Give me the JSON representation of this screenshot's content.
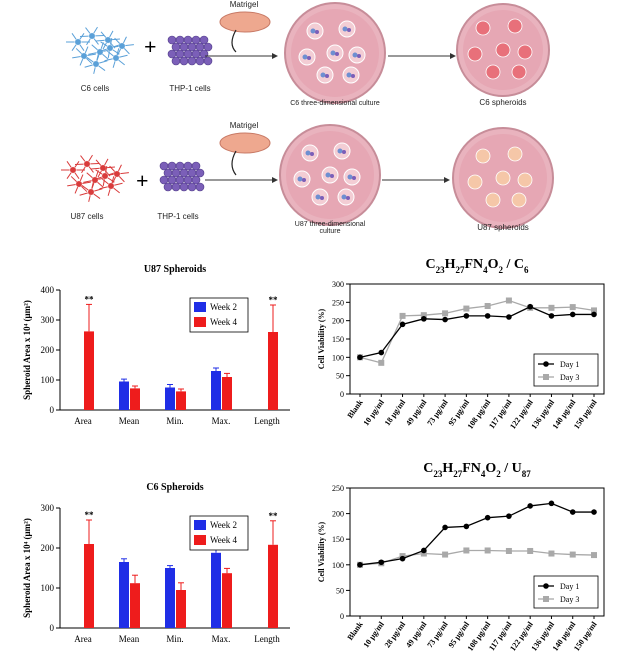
{
  "schematic": {
    "row1": {
      "cell_label": "C6 cells",
      "thp_label": "THP-1 cells",
      "matrigel_label": "Matrigel",
      "culture_label": "C6 three-dimensional culture",
      "spheroid_label": "C6 spheroids"
    },
    "row2": {
      "cell_label": "U87 cells",
      "thp_label": "THP-1 cells",
      "matrigel_label": "Matrigel",
      "culture_label": "U87 three-dimensional culture",
      "spheroid_label": "U87 spheroids"
    },
    "colors": {
      "c6_cell": "#5aa0d8",
      "u87_cell": "#d93b3b",
      "thp": "#7b5fb8",
      "dish": "#e6a7b4",
      "spheroid_c6": "#e8707a",
      "spheroid_u87": "#f5c7a8"
    }
  },
  "chart_data": [
    {
      "type": "bar",
      "title": "U87 Spheroids",
      "ylabel": "Spheroid Area x 10⁴ (μm²)",
      "categories": [
        "Area",
        "Mean",
        "Min.",
        "Max.",
        "Length"
      ],
      "ylim": [
        0,
        400
      ],
      "yticks": [
        "0",
        "100",
        "200",
        "300",
        "400"
      ],
      "series": [
        {
          "name": "Week 2",
          "color": "#1f2ee6",
          "values": [
            0,
            95,
            75,
            130,
            0
          ],
          "errors": [
            0,
            8,
            10,
            10,
            0
          ]
        },
        {
          "name": "Week 4",
          "color": "#ee1c1c",
          "values": [
            262,
            72,
            62,
            110,
            260
          ],
          "errors": [
            90,
            8,
            8,
            12,
            90
          ]
        }
      ],
      "annotations": [
        "**",
        "**"
      ],
      "legend": "top-right"
    },
    {
      "type": "line",
      "title": "C23H27FN4O2 / C6",
      "ylabel": "Cell Viability (%)",
      "categories": [
        "Blank",
        "10 μg/ml",
        "18 μg/ml",
        "49 μg/ml",
        "73 μg/ml",
        "95 μg/ml",
        "108 μg/ml",
        "117 μg/ml",
        "122 μg/ml",
        "136 μg/ml",
        "140 μg/ml",
        "150 μg/ml"
      ],
      "ylim": [
        0,
        300
      ],
      "yticks": [
        "0",
        "50",
        "100",
        "150",
        "200",
        "250",
        "300"
      ],
      "series": [
        {
          "name": "Day 1",
          "color": "#000000",
          "marker": "circle",
          "values": [
            100,
            113,
            190,
            205,
            203,
            213,
            213,
            210,
            238,
            213,
            217,
            217
          ]
        },
        {
          "name": "Day 3",
          "color": "#a9a9a9",
          "marker": "square",
          "values": [
            100,
            85,
            213,
            215,
            220,
            233,
            240,
            255,
            235,
            235,
            237,
            228
          ]
        }
      ],
      "legend": "bottom-right"
    },
    {
      "type": "bar",
      "title": "C6 Spheroids",
      "ylabel": "Spheroid Area x 10⁴ (μm²)",
      "categories": [
        "Area",
        "Mean",
        "Min.",
        "Max.",
        "Length"
      ],
      "ylim": [
        0,
        300
      ],
      "yticks": [
        "0",
        "100",
        "200",
        "300"
      ],
      "series": [
        {
          "name": "Week 2",
          "color": "#1f2ee6",
          "values": [
            0,
            165,
            150,
            188,
            0
          ],
          "errors": [
            0,
            8,
            6,
            15,
            0
          ]
        },
        {
          "name": "Week 4",
          "color": "#ee1c1c",
          "values": [
            210,
            112,
            95,
            137,
            208
          ],
          "errors": [
            60,
            20,
            18,
            12,
            60
          ]
        }
      ],
      "annotations": [
        "**",
        "**"
      ],
      "legend": "top-right"
    },
    {
      "type": "line",
      "title": "C23H27FN4O2 / U87",
      "ylabel": "Cell Viability (%)",
      "categories": [
        "Blank",
        "10 μg/ml",
        "28 μg/ml",
        "49 μg/ml",
        "73 μg/ml",
        "95 μg/ml",
        "108 μg/ml",
        "117 μg/ml",
        "122 μg/ml",
        "136 μg/ml",
        "140 μg/ml",
        "150 μg/ml"
      ],
      "ylim": [
        0,
        250
      ],
      "yticks": [
        "0",
        "50",
        "100",
        "150",
        "200",
        "250"
      ],
      "series": [
        {
          "name": "Day 1",
          "color": "#000000",
          "marker": "circle",
          "values": [
            100,
            105,
            112,
            128,
            173,
            175,
            192,
            195,
            215,
            220,
            203,
            203
          ]
        },
        {
          "name": "Day 3",
          "color": "#a9a9a9",
          "marker": "square",
          "values": [
            100,
            103,
            117,
            122,
            120,
            128,
            128,
            127,
            127,
            122,
            120,
            119
          ]
        }
      ],
      "legend": "bottom-right"
    }
  ]
}
